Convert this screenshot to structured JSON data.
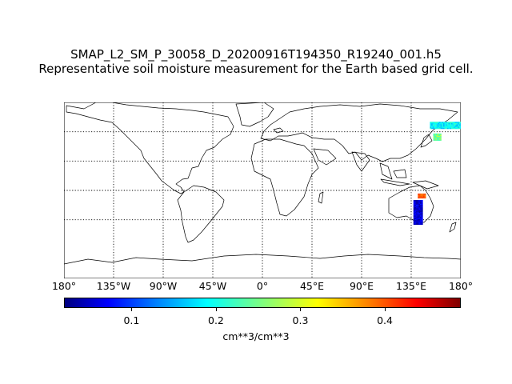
{
  "header": {
    "filename": "SMAP_L2_SM_P_30058_D_20200916T194350_R19240_001.h5",
    "description": "Representative soil moisture measurement for the Earth based grid cell."
  },
  "map": {
    "projection": "cylindrical",
    "lon_range": [
      -180,
      180
    ],
    "lat_range": [
      -90,
      90
    ],
    "graticule_lats": [
      -30,
      0,
      30,
      60
    ],
    "graticule_lons": [
      -135,
      -90,
      -45,
      0,
      45,
      90,
      135
    ],
    "longitude_labels": [
      "180°",
      "135°W",
      "90°W",
      "45°W",
      "0°",
      "45°E",
      "90°E",
      "135°E",
      "180°"
    ],
    "data_swaths": [
      {
        "region": "eastern-siberia",
        "lon": [
          152,
          180
        ],
        "lat": [
          63,
          70
        ],
        "value_range": [
          0.15,
          0.22
        ]
      },
      {
        "region": "kamchatka",
        "lon": [
          155,
          162
        ],
        "lat": [
          51,
          58
        ],
        "value_range": [
          0.2,
          0.3
        ]
      },
      {
        "region": "new-guinea",
        "lon": [
          141,
          148
        ],
        "lat": [
          -8,
          -4
        ],
        "value_range": [
          0.38,
          0.42
        ]
      },
      {
        "region": "eastern-australia",
        "lon": [
          137,
          145
        ],
        "lat": [
          -35,
          -11
        ],
        "value_range": [
          0.03,
          0.08
        ]
      }
    ]
  },
  "colorbar": {
    "min": 0.02,
    "max": 0.49,
    "ticks": [
      "0.1",
      "0.2",
      "0.3",
      "0.4"
    ],
    "tick_values": [
      0.1,
      0.2,
      0.3,
      0.4
    ],
    "unit": "cm**3/cm**3",
    "colormap": "jet"
  }
}
